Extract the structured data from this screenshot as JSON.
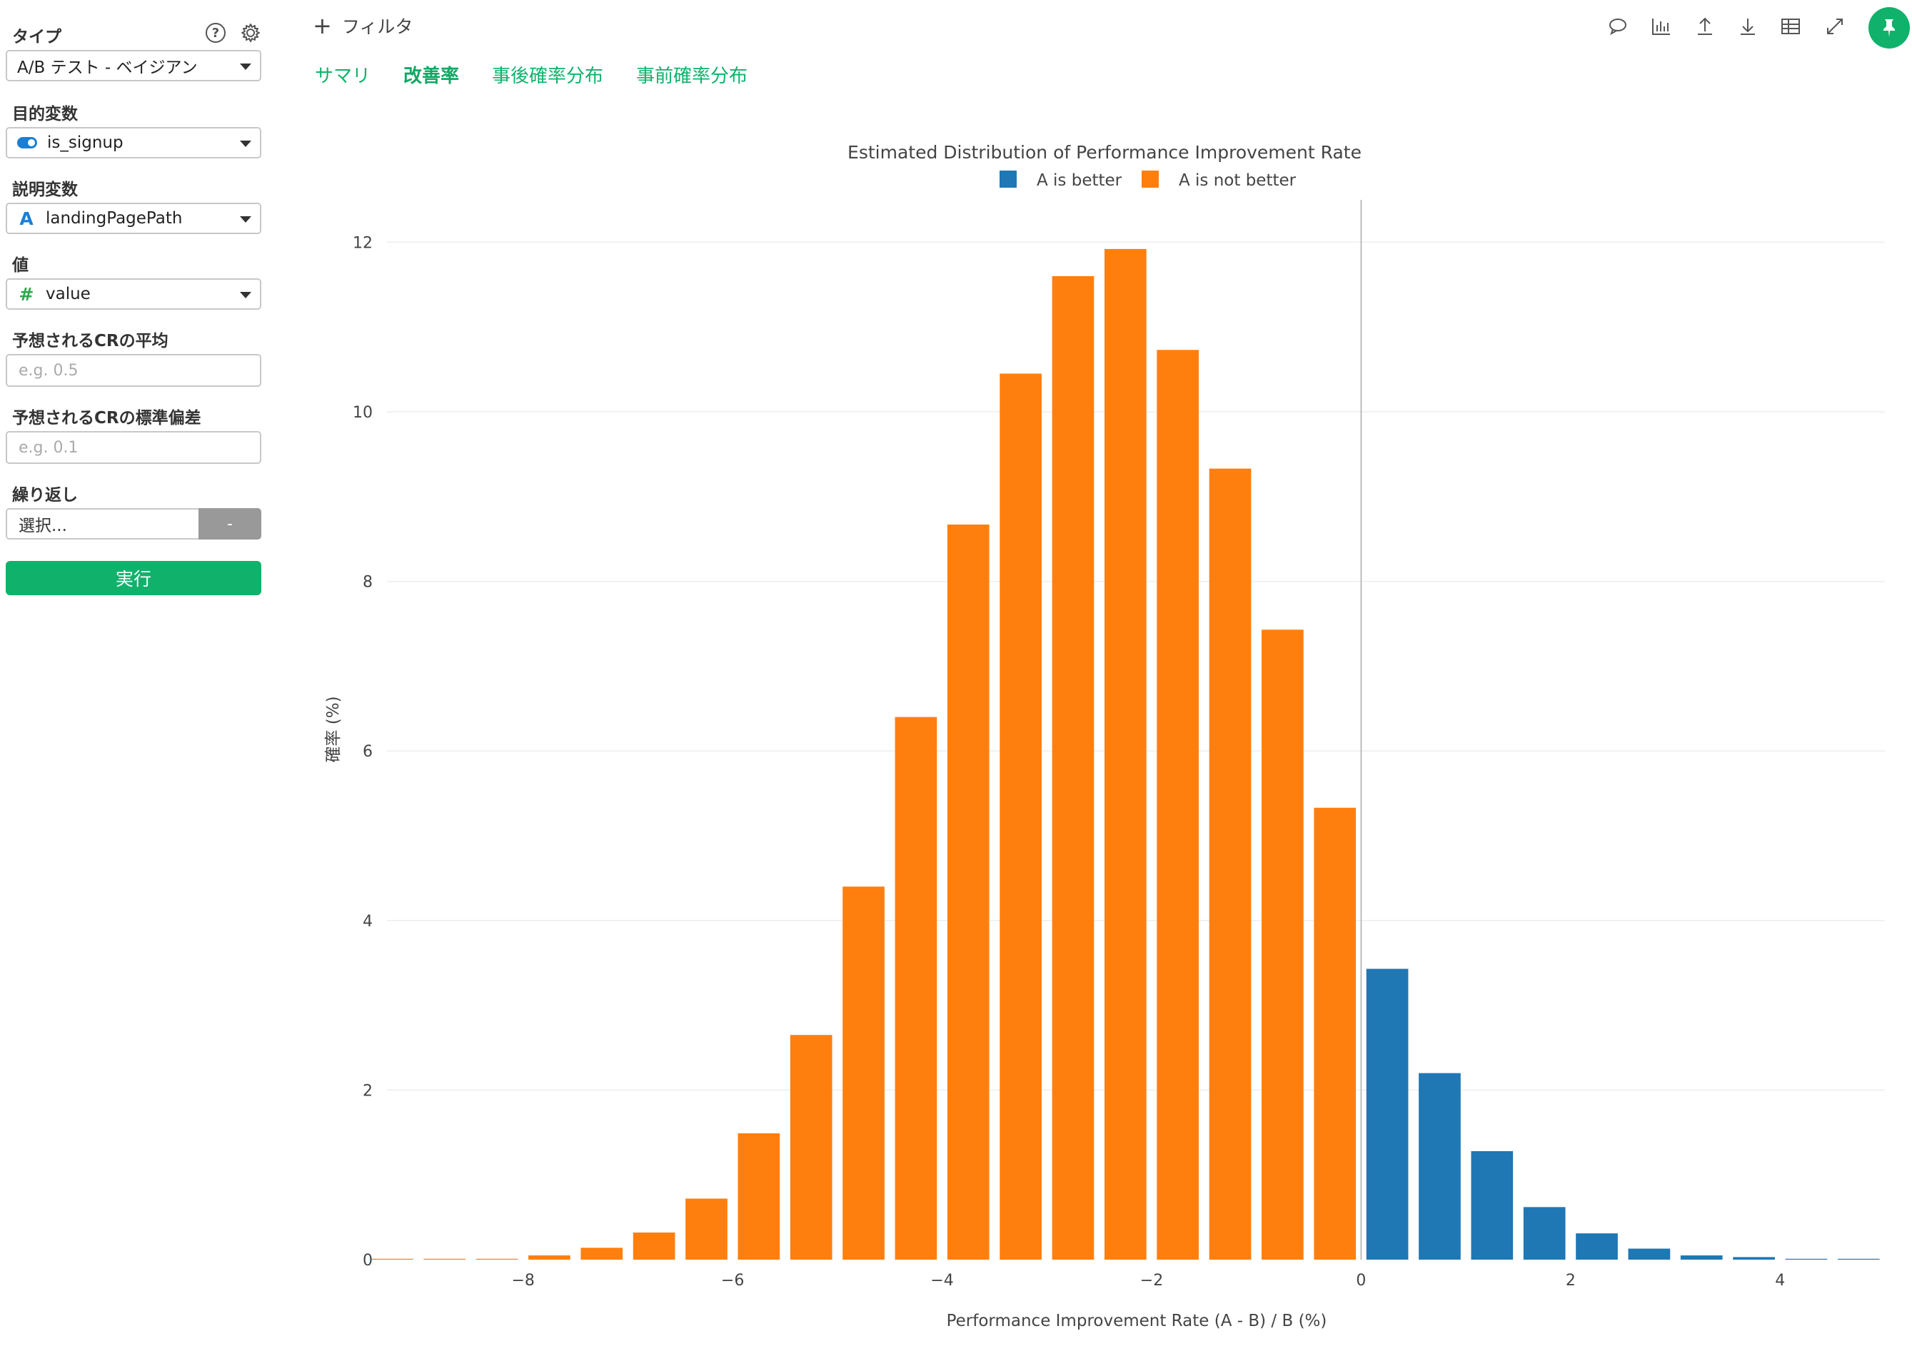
{
  "sidebar": {
    "type_label": "タイプ",
    "type_value": "A/B テスト - ベイジアン",
    "target_label": "目的変数",
    "target_value": "is_signup",
    "explanatory_label": "説明変数",
    "explanatory_value": "landingPagePath",
    "explanatory_icon": "A",
    "value_label": "値",
    "value_value": "value",
    "value_icon": "#",
    "cr_mean_label": "予想されるCRの平均",
    "cr_mean_placeholder": "e.g. 0.5",
    "cr_sd_label": "予想されるCRの標準偏差",
    "cr_sd_placeholder": "e.g. 0.1",
    "repeat_label": "繰り返し",
    "repeat_value": "選択...",
    "repeat_button": "-",
    "run_button": "実行",
    "help_icon": "?"
  },
  "header": {
    "filter_label": "フィルタ",
    "tabs": [
      "サマリ",
      "改善率",
      "事後確率分布",
      "事前確率分布"
    ],
    "active_tab": 1
  },
  "toolbar": {
    "icons": [
      "comment-icon",
      "chart-icon",
      "upload-icon",
      "download-icon",
      "table-icon",
      "expand-icon",
      "pin-icon"
    ]
  },
  "colors": {
    "accent": "#10b26b",
    "a_better": "#1f77b4",
    "a_not_better": "#ff7f0e"
  },
  "chart_data": {
    "type": "bar",
    "title": "Estimated Distribution of Performance Improvement Rate",
    "xlabel": "Performance Improvement Rate (A - B) / B (%)",
    "ylabel": "確率 (%)",
    "xlim": [
      -9.3,
      5.0
    ],
    "ylim": [
      0,
      12.5
    ],
    "x_ticks": [
      -8,
      -6,
      -4,
      -2,
      0,
      2,
      4
    ],
    "x_tick_labels": [
      "−8",
      "−6",
      "−4",
      "−2",
      "0",
      "2",
      "4"
    ],
    "y_ticks": [
      0,
      2,
      4,
      6,
      8,
      10,
      12
    ],
    "y_tick_labels": [
      "0",
      "2",
      "4",
      "6",
      "8",
      "10",
      "12"
    ],
    "vline_x": 0,
    "grid": true,
    "legend": "top-center",
    "series": [
      {
        "name": "A is better",
        "color": "#1f77b4",
        "x": [
          0.25,
          0.75,
          1.25,
          1.75,
          2.25,
          2.75,
          3.25,
          3.75,
          4.25,
          4.75
        ],
        "values": [
          3.43,
          2.2,
          1.28,
          0.62,
          0.31,
          0.13,
          0.05,
          0.03,
          0.01,
          0.01
        ]
      },
      {
        "name": "A is not better",
        "color": "#ff7f0e",
        "x": [
          -9.25,
          -8.75,
          -8.25,
          -7.75,
          -7.25,
          -6.75,
          -6.25,
          -5.75,
          -5.25,
          -4.75,
          -4.25,
          -3.75,
          -3.25,
          -2.75,
          -2.25,
          -1.75,
          -1.25,
          -0.75,
          -0.25
        ],
        "values": [
          0.01,
          0.01,
          0.01,
          0.05,
          0.14,
          0.32,
          0.72,
          1.49,
          2.65,
          4.4,
          6.4,
          8.67,
          10.45,
          11.6,
          11.92,
          10.73,
          9.33,
          7.43,
          5.33
        ]
      }
    ]
  }
}
